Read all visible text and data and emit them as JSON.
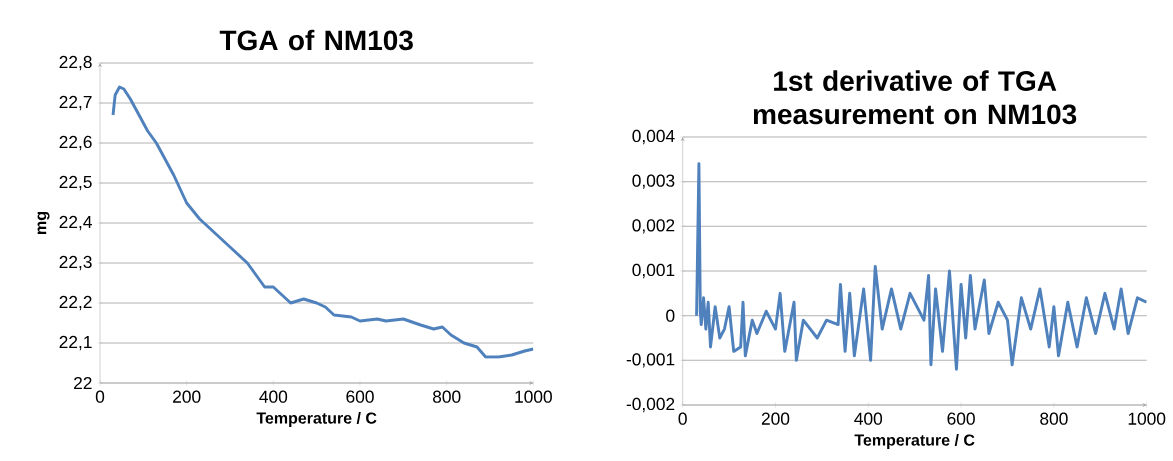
{
  "chart_data": [
    {
      "type": "line",
      "title": "TGA of NM103",
      "xlabel": "Temperature / C",
      "ylabel": "mg",
      "color": "#4f81bd",
      "grid": "y",
      "xlim": [
        0,
        1000
      ],
      "xticks": [
        0,
        200,
        400,
        600,
        800,
        1000
      ],
      "ylim": [
        22,
        22.8
      ],
      "yticks": [
        22,
        {
          "value": 22.1,
          "label": "22,1"
        },
        {
          "value": 22.2,
          "label": "22,2"
        },
        {
          "value": 22.3,
          "label": "22,3"
        },
        {
          "value": 22.4,
          "label": "22,4"
        },
        {
          "value": 22.5,
          "label": "22,5"
        },
        {
          "value": 22.6,
          "label": "22,6"
        },
        {
          "value": 22.7,
          "label": "22,7"
        },
        {
          "value": 22.8,
          "label": "22,8"
        }
      ],
      "x": [
        30,
        35,
        45,
        55,
        70,
        90,
        110,
        130,
        150,
        170,
        200,
        230,
        260,
        300,
        340,
        360,
        380,
        400,
        420,
        440,
        470,
        500,
        520,
        540,
        580,
        600,
        640,
        660,
        700,
        740,
        770,
        790,
        810,
        840,
        870,
        890,
        920,
        950,
        980,
        1000
      ],
      "values": [
        22.67,
        22.72,
        22.74,
        22.735,
        22.71,
        22.67,
        22.63,
        22.6,
        22.56,
        22.52,
        22.45,
        22.41,
        22.38,
        22.34,
        22.3,
        22.27,
        22.24,
        22.24,
        22.22,
        22.2,
        22.21,
        22.2,
        22.19,
        22.17,
        22.165,
        22.155,
        22.16,
        22.155,
        22.16,
        22.145,
        22.135,
        22.14,
        22.12,
        22.1,
        22.09,
        22.065,
        22.065,
        22.07,
        22.08,
        22.085
      ]
    },
    {
      "type": "line",
      "title": "1st derivative of TGA measurement on NM103",
      "xlabel": "Temperature / C",
      "color": "#4f81bd",
      "grid": "y",
      "xlim": [
        0,
        1000
      ],
      "xticks": [
        0,
        200,
        400,
        600,
        800,
        1000
      ],
      "ylim": [
        -0.002,
        0.004
      ],
      "yticks": [
        {
          "value": -0.002,
          "label": "-0,002"
        },
        {
          "value": -0.001,
          "label": "-0,001"
        },
        0,
        {
          "value": 0.001,
          "label": "0,001"
        },
        {
          "value": 0.002,
          "label": "0,002"
        },
        {
          "value": 0.003,
          "label": "0,003"
        },
        {
          "value": 0.004,
          "label": "0,004"
        }
      ],
      "x": [
        30,
        35,
        38,
        40,
        45,
        50,
        55,
        60,
        70,
        80,
        90,
        100,
        110,
        125,
        130,
        135,
        150,
        160,
        180,
        200,
        210,
        220,
        240,
        245,
        260,
        290,
        310,
        335,
        340,
        350,
        360,
        370,
        390,
        405,
        415,
        430,
        450,
        470,
        490,
        520,
        530,
        535,
        545,
        560,
        575,
        590,
        600,
        610,
        620,
        630,
        650,
        660,
        680,
        700,
        710,
        730,
        750,
        770,
        790,
        800,
        810,
        830,
        850,
        870,
        890,
        910,
        930,
        945,
        960,
        980,
        1000
      ],
      "values": [
        0,
        0.0034,
        0.0001,
        -0.0002,
        0.0004,
        -0.0003,
        0.0003,
        -0.0007,
        0.0002,
        -0.0005,
        -0.0003,
        0.0002,
        -0.0008,
        -0.0007,
        0.0003,
        -0.0009,
        -0.0001,
        -0.0004,
        0.0001,
        -0.0003,
        0.0005,
        -0.0008,
        0.0003,
        -0.001,
        -0.0001,
        -0.0005,
        -0.0001,
        -0.0002,
        0.0007,
        -0.0008,
        0.0005,
        -0.0009,
        0.0006,
        -0.001,
        0.0011,
        -0.0003,
        0.0006,
        -0.0003,
        0.0005,
        -0.0001,
        0.0009,
        -0.0011,
        0.0006,
        -0.0008,
        0.001,
        -0.0012,
        0.0007,
        -0.0005,
        0.0009,
        -0.0003,
        0.0008,
        -0.0004,
        0.0003,
        -0.0001,
        -0.0011,
        0.0004,
        -0.0003,
        0.0006,
        -0.0007,
        0.0002,
        -0.0009,
        0.0003,
        -0.0007,
        0.0004,
        -0.0004,
        0.0005,
        -0.0003,
        0.0006,
        -0.0004,
        0.0004,
        0.0003
      ]
    }
  ]
}
